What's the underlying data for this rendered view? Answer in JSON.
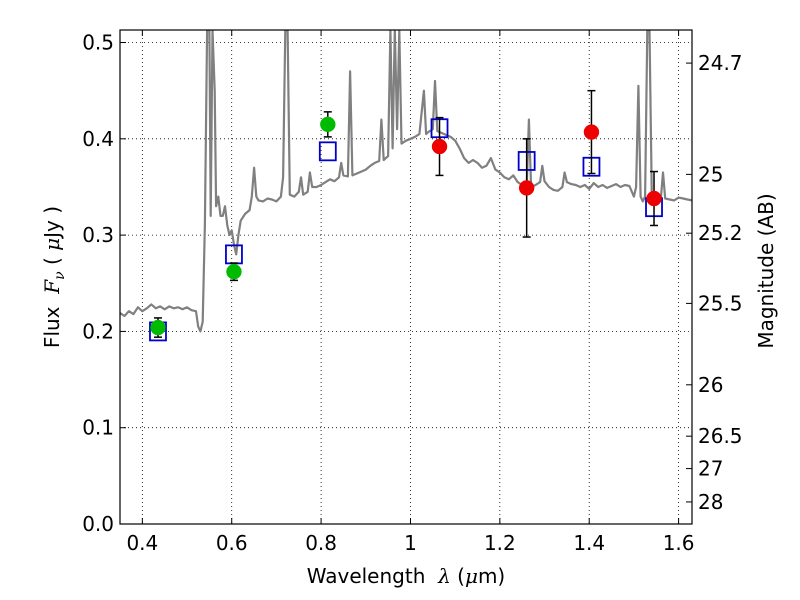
{
  "chart_data": {
    "type": "scatter",
    "title": "",
    "xlabel": {
      "prefix": "Wavelength  ",
      "symbol": "λ",
      "units_open": " (",
      "units_mu": "μ",
      "units_close": "m)"
    },
    "ylabel": {
      "prefix": "Flux  ",
      "symbol": "F",
      "subscript": "ν",
      "units_open": " ( ",
      "units_mu": "μ",
      "units_close": "Jy )"
    },
    "y2label": "Magnitude (AB)",
    "xlim": [
      0.35,
      1.63
    ],
    "ylim": [
      0.0,
      0.513
    ],
    "grid": true,
    "x_ticks": [
      {
        "value": 0.4,
        "label": "0.4"
      },
      {
        "value": 0.6,
        "label": "0.6"
      },
      {
        "value": 0.8,
        "label": "0.8"
      },
      {
        "value": 1.0,
        "label": "1"
      },
      {
        "value": 1.2,
        "label": "1.2"
      },
      {
        "value": 1.4,
        "label": "1.4"
      },
      {
        "value": 1.6,
        "label": "1.6"
      }
    ],
    "y_ticks": [
      {
        "value": 0.0,
        "label": "0.0"
      },
      {
        "value": 0.1,
        "label": "0.1"
      },
      {
        "value": 0.2,
        "label": "0.2"
      },
      {
        "value": 0.3,
        "label": "0.3"
      },
      {
        "value": 0.4,
        "label": "0.4"
      },
      {
        "value": 0.5,
        "label": "0.5"
      }
    ],
    "y2_ticks": [
      {
        "mag": 24.7,
        "label": "24.7"
      },
      {
        "mag": 25,
        "label": "25"
      },
      {
        "mag": 25.2,
        "label": "25.2"
      },
      {
        "mag": 25.5,
        "label": "25.5"
      },
      {
        "mag": 26,
        "label": "26"
      },
      {
        "mag": 26.5,
        "label": "26.5"
      },
      {
        "mag": 27,
        "label": "27"
      },
      {
        "mag": 28,
        "label": "28"
      }
    ],
    "series": [
      {
        "name": "model spectrum",
        "kind": "line",
        "color": "#808080",
        "points": [
          [
            0.35,
            0.219
          ],
          [
            0.36,
            0.216
          ],
          [
            0.37,
            0.221
          ],
          [
            0.38,
            0.218
          ],
          [
            0.39,
            0.225
          ],
          [
            0.4,
            0.221
          ],
          [
            0.41,
            0.224
          ],
          [
            0.42,
            0.228
          ],
          [
            0.43,
            0.224
          ],
          [
            0.44,
            0.226
          ],
          [
            0.45,
            0.223
          ],
          [
            0.46,
            0.226
          ],
          [
            0.47,
            0.224
          ],
          [
            0.48,
            0.225
          ],
          [
            0.49,
            0.223
          ],
          [
            0.5,
            0.225
          ],
          [
            0.51,
            0.222
          ],
          [
            0.52,
            0.221
          ],
          [
            0.525,
            0.205
          ],
          [
            0.53,
            0.2
          ],
          [
            0.535,
            0.21
          ],
          [
            0.54,
            0.312
          ],
          [
            0.545,
            0.513
          ],
          [
            0.55,
            0.513
          ],
          [
            0.553,
            0.32
          ],
          [
            0.557,
            0.513
          ],
          [
            0.562,
            0.45
          ],
          [
            0.565,
            0.33
          ],
          [
            0.57,
            0.34
          ],
          [
            0.575,
            0.32
          ],
          [
            0.58,
            0.32
          ],
          [
            0.585,
            0.33
          ],
          [
            0.59,
            0.31
          ],
          [
            0.595,
            0.3
          ],
          [
            0.6,
            0.305
          ],
          [
            0.605,
            0.29
          ],
          [
            0.61,
            0.28
          ],
          [
            0.615,
            0.3
          ],
          [
            0.62,
            0.315
          ],
          [
            0.63,
            0.322
          ],
          [
            0.64,
            0.326
          ],
          [
            0.645,
            0.34
          ],
          [
            0.65,
            0.37
          ],
          [
            0.655,
            0.34
          ],
          [
            0.66,
            0.336
          ],
          [
            0.67,
            0.335
          ],
          [
            0.68,
            0.338
          ],
          [
            0.69,
            0.337
          ],
          [
            0.7,
            0.335
          ],
          [
            0.71,
            0.34
          ],
          [
            0.715,
            0.36
          ],
          [
            0.72,
            0.513
          ],
          [
            0.725,
            0.513
          ],
          [
            0.73,
            0.342
          ],
          [
            0.74,
            0.34
          ],
          [
            0.75,
            0.345
          ],
          [
            0.755,
            0.36
          ],
          [
            0.76,
            0.342
          ],
          [
            0.77,
            0.345
          ],
          [
            0.775,
            0.365
          ],
          [
            0.78,
            0.35
          ],
          [
            0.79,
            0.35
          ],
          [
            0.8,
            0.352
          ],
          [
            0.81,
            0.355
          ],
          [
            0.82,
            0.358
          ],
          [
            0.83,
            0.356
          ],
          [
            0.84,
            0.36
          ],
          [
            0.845,
            0.375
          ],
          [
            0.85,
            0.362
          ],
          [
            0.86,
            0.361
          ],
          [
            0.865,
            0.47
          ],
          [
            0.87,
            0.362
          ],
          [
            0.88,
            0.364
          ],
          [
            0.89,
            0.366
          ],
          [
            0.9,
            0.368
          ],
          [
            0.91,
            0.372
          ],
          [
            0.92,
            0.375
          ],
          [
            0.93,
            0.377
          ],
          [
            0.935,
            0.42
          ],
          [
            0.94,
            0.378
          ],
          [
            0.95,
            0.382
          ],
          [
            0.955,
            0.513
          ],
          [
            0.96,
            0.39
          ],
          [
            0.965,
            0.513
          ],
          [
            0.97,
            0.41
          ],
          [
            0.975,
            0.513
          ],
          [
            0.98,
            0.395
          ],
          [
            0.99,
            0.398
          ],
          [
            1.0,
            0.4
          ],
          [
            1.01,
            0.402
          ],
          [
            1.02,
            0.405
          ],
          [
            1.03,
            0.45
          ],
          [
            1.035,
            0.405
          ],
          [
            1.04,
            0.407
          ],
          [
            1.05,
            0.41
          ],
          [
            1.055,
            0.46
          ],
          [
            1.06,
            0.408
          ],
          [
            1.07,
            0.406
          ],
          [
            1.08,
            0.404
          ],
          [
            1.09,
            0.402
          ],
          [
            1.1,
            0.398
          ],
          [
            1.11,
            0.39
          ],
          [
            1.12,
            0.38
          ],
          [
            1.13,
            0.375
          ],
          [
            1.14,
            0.378
          ],
          [
            1.15,
            0.375
          ],
          [
            1.16,
            0.37
          ],
          [
            1.17,
            0.372
          ],
          [
            1.18,
            0.38
          ],
          [
            1.19,
            0.368
          ],
          [
            1.2,
            0.365
          ],
          [
            1.21,
            0.36
          ],
          [
            1.22,
            0.358
          ],
          [
            1.23,
            0.362
          ],
          [
            1.24,
            0.355
          ],
          [
            1.25,
            0.352
          ],
          [
            1.26,
            0.35
          ],
          [
            1.265,
            0.42
          ],
          [
            1.27,
            0.35
          ],
          [
            1.28,
            0.352
          ],
          [
            1.29,
            0.355
          ],
          [
            1.295,
            0.372
          ],
          [
            1.3,
            0.356
          ],
          [
            1.31,
            0.35
          ],
          [
            1.32,
            0.347
          ],
          [
            1.33,
            0.346
          ],
          [
            1.34,
            0.35
          ],
          [
            1.345,
            0.365
          ],
          [
            1.35,
            0.355
          ],
          [
            1.36,
            0.353
          ],
          [
            1.37,
            0.352
          ],
          [
            1.38,
            0.35
          ],
          [
            1.39,
            0.352
          ],
          [
            1.4,
            0.348
          ],
          [
            1.41,
            0.354
          ],
          [
            1.42,
            0.35
          ],
          [
            1.43,
            0.352
          ],
          [
            1.44,
            0.349
          ],
          [
            1.45,
            0.351
          ],
          [
            1.46,
            0.353
          ],
          [
            1.47,
            0.35
          ],
          [
            1.48,
            0.352
          ],
          [
            1.49,
            0.351
          ],
          [
            1.5,
            0.34
          ],
          [
            1.505,
            0.35
          ],
          [
            1.51,
            0.455
          ],
          [
            1.515,
            0.34
          ],
          [
            1.52,
            0.335
          ],
          [
            1.525,
            0.34
          ],
          [
            1.53,
            0.513
          ],
          [
            1.535,
            0.513
          ],
          [
            1.54,
            0.34
          ],
          [
            1.55,
            0.338
          ],
          [
            1.56,
            0.336
          ],
          [
            1.565,
            0.365
          ],
          [
            1.57,
            0.338
          ],
          [
            1.58,
            0.337
          ],
          [
            1.59,
            0.336
          ],
          [
            1.6,
            0.339
          ],
          [
            1.61,
            0.338
          ],
          [
            1.62,
            0.337
          ],
          [
            1.63,
            0.336
          ]
        ]
      },
      {
        "name": "blue open squares (model photometry)",
        "kind": "square",
        "color": "#0000cc",
        "points": [
          {
            "x": 0.435,
            "y": 0.2
          },
          {
            "x": 0.605,
            "y": 0.28
          },
          {
            "x": 0.815,
            "y": 0.387
          },
          {
            "x": 1.065,
            "y": 0.411
          },
          {
            "x": 1.26,
            "y": 0.377
          },
          {
            "x": 1.405,
            "y": 0.371
          },
          {
            "x": 1.545,
            "y": 0.329
          }
        ]
      },
      {
        "name": "green filled circles (optical photometry)",
        "kind": "circle",
        "color": "#00bb00",
        "points": [
          {
            "x": 0.435,
            "y": 0.204,
            "err": 0.01
          },
          {
            "x": 0.605,
            "y": 0.262,
            "err": 0.009
          },
          {
            "x": 0.815,
            "y": 0.415,
            "err": 0.013
          }
        ]
      },
      {
        "name": "red filled circles (near-IR photometry)",
        "kind": "circle",
        "color": "#ee0000",
        "points": [
          {
            "x": 1.065,
            "y": 0.392,
            "err": 0.03
          },
          {
            "x": 1.26,
            "y": 0.349,
            "err": 0.051
          },
          {
            "x": 1.405,
            "y": 0.407,
            "err": 0.043
          },
          {
            "x": 1.545,
            "y": 0.338,
            "err": 0.028
          }
        ]
      }
    ]
  }
}
